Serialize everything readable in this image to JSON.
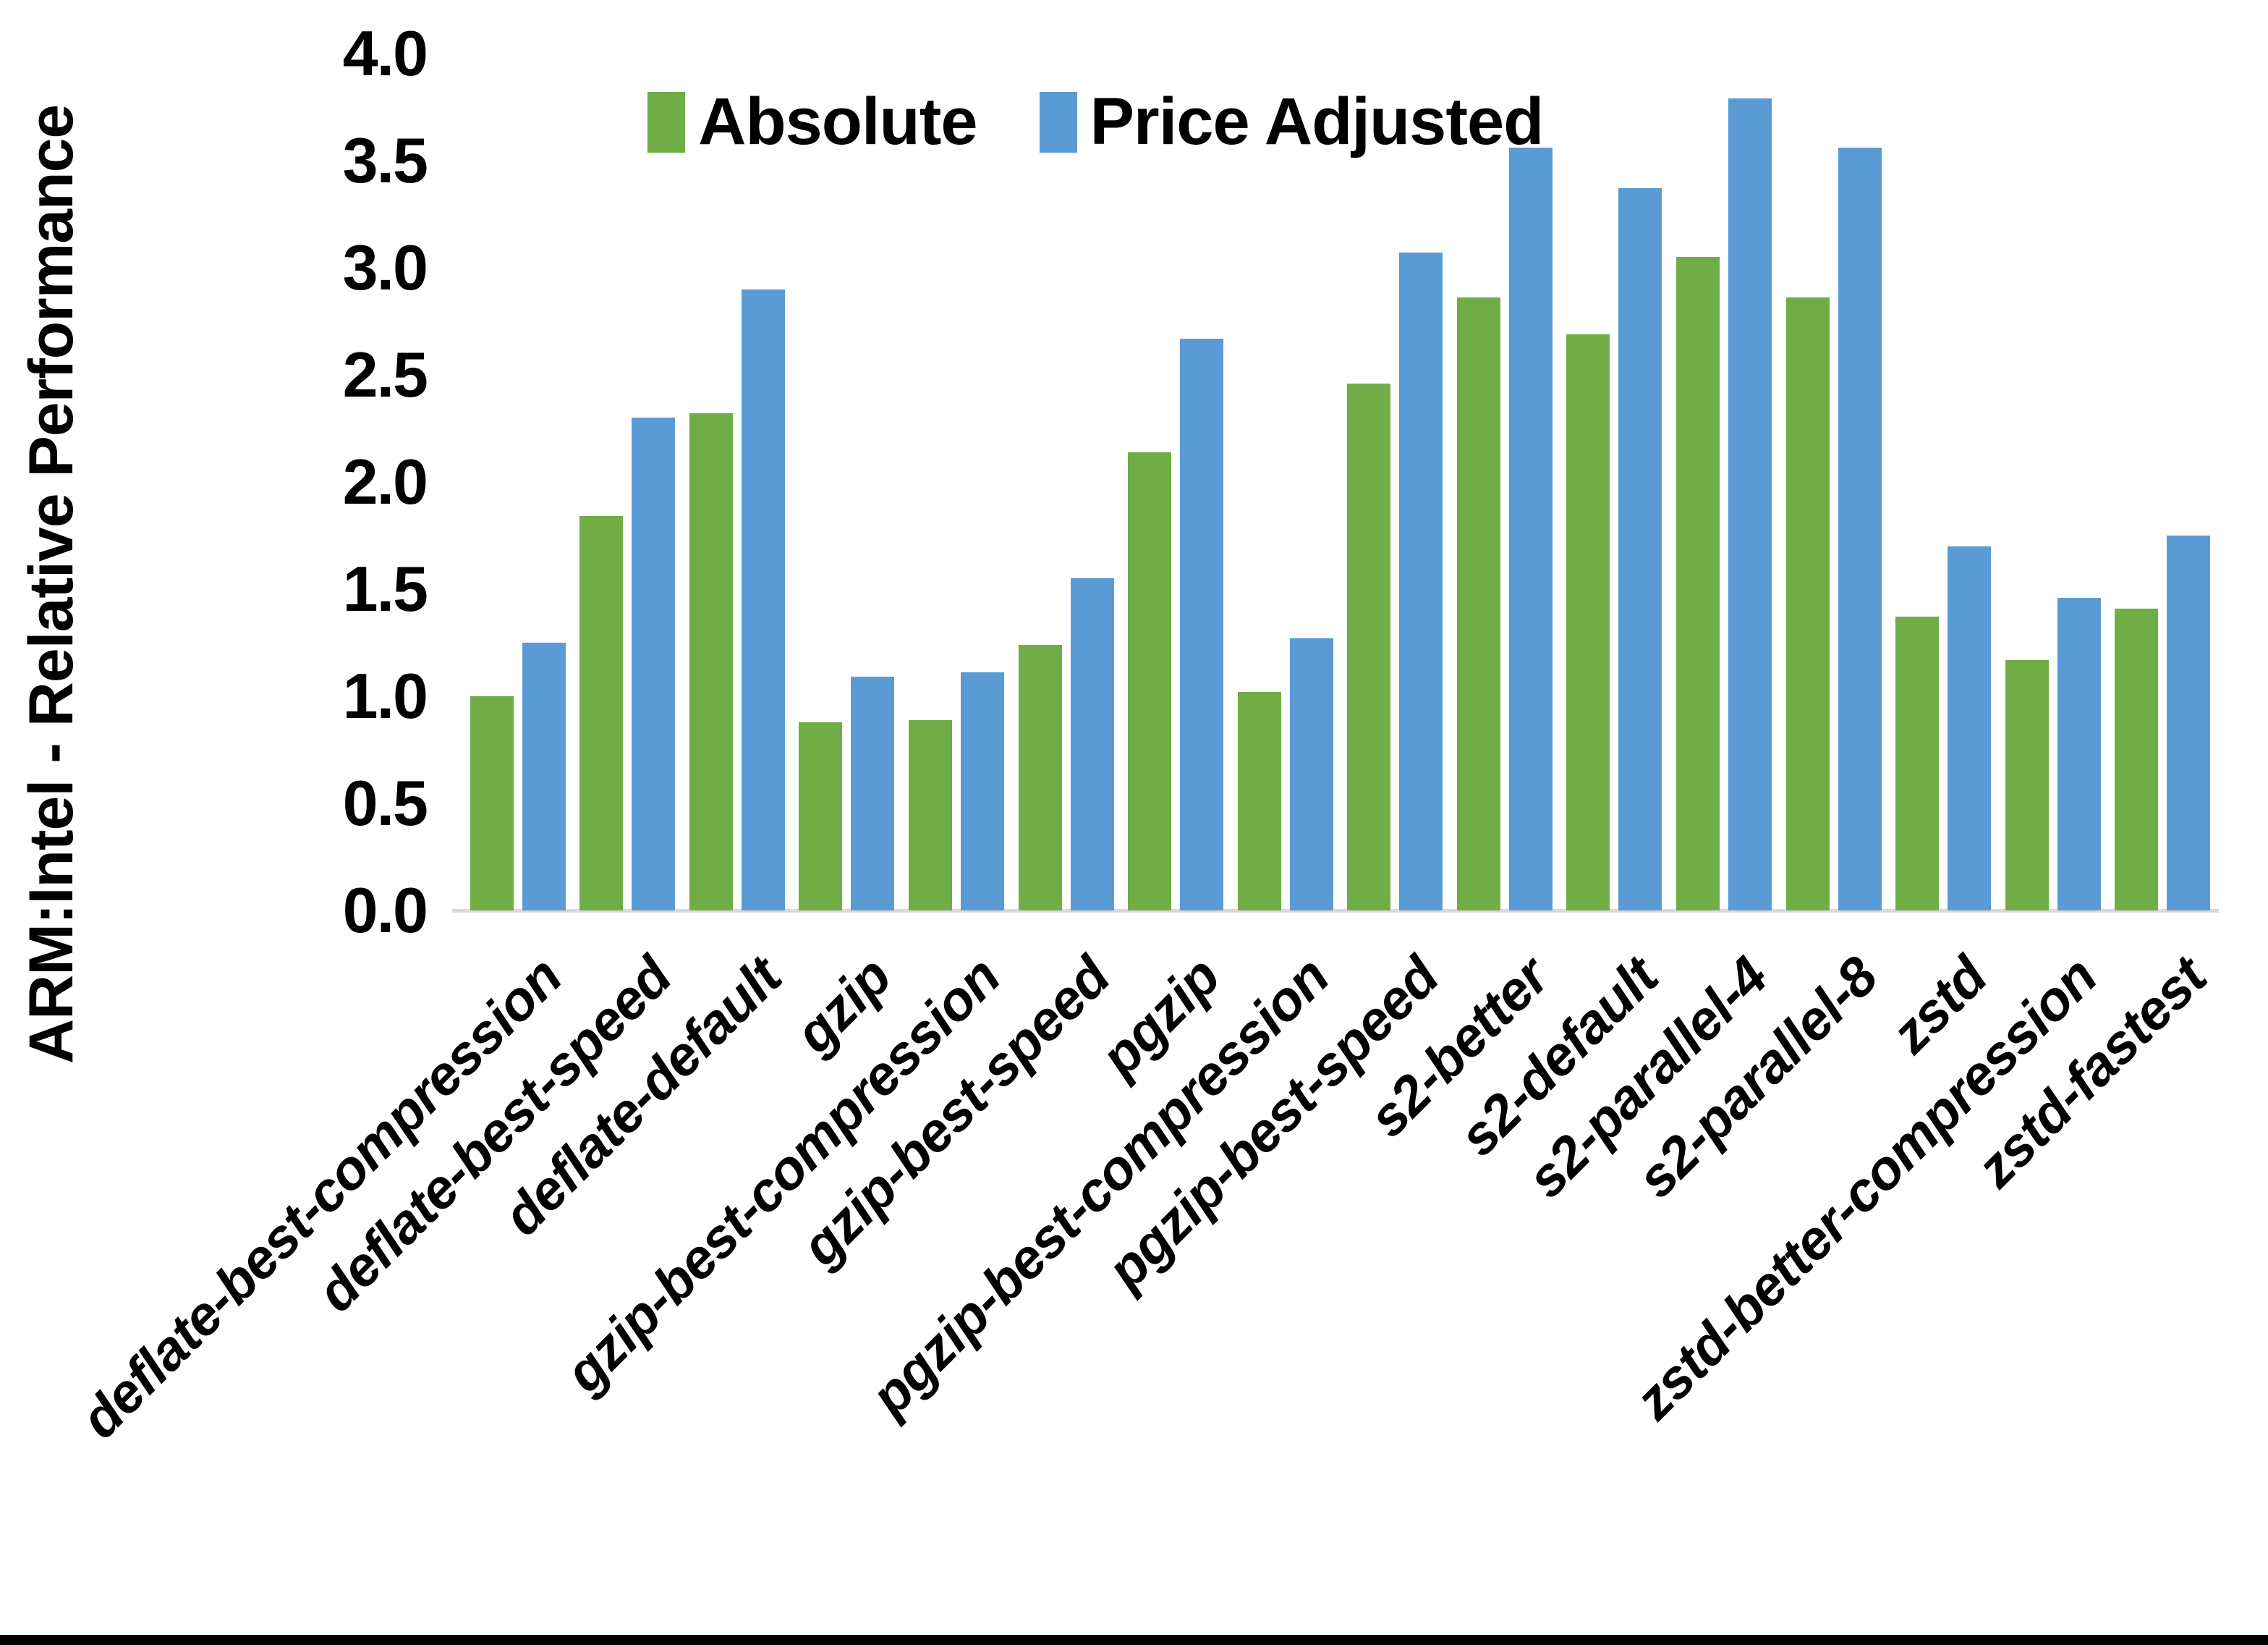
{
  "chart_data": {
    "type": "bar",
    "title": "",
    "ylabel": "ARM:Intel - Relative Performance",
    "xlabel": "",
    "ylim": [
      0.0,
      4.0
    ],
    "grid": false,
    "legend_position": "top-center",
    "yticks": [
      {
        "value": 0.0,
        "label": "0.0"
      },
      {
        "value": 0.5,
        "label": "0.5"
      },
      {
        "value": 1.0,
        "label": "1.0"
      },
      {
        "value": 1.5,
        "label": "1.5"
      },
      {
        "value": 2.0,
        "label": "2.0"
      },
      {
        "value": 2.5,
        "label": "2.5"
      },
      {
        "value": 3.0,
        "label": "3.0"
      },
      {
        "value": 3.5,
        "label": "3.5"
      },
      {
        "value": 4.0,
        "label": "4.0"
      }
    ],
    "categories": [
      "deflate-best-compression",
      "deflate-best-speed",
      "deflate-default",
      "gzip",
      "gzip-best-compression",
      "gzip-best-speed",
      "pgzip",
      "pgzip-best-compression",
      "pgzip-best-speed",
      "s2-better",
      "s2-default",
      "s2-parallel-4",
      "s2-parallel-8",
      "zstd",
      "zstd-better-compression",
      "zstd-fastest"
    ],
    "series": [
      {
        "name": "Absolute",
        "color": "#70AD47",
        "values": [
          1.0,
          1.84,
          2.32,
          0.88,
          0.89,
          1.24,
          2.14,
          1.02,
          2.46,
          2.86,
          2.69,
          3.05,
          2.86,
          1.37,
          1.17,
          1.41
        ]
      },
      {
        "name": "Price Adjusted",
        "color": "#5B9BD5",
        "values": [
          1.25,
          2.3,
          2.9,
          1.09,
          1.11,
          1.55,
          2.67,
          1.27,
          3.07,
          3.56,
          3.37,
          3.79,
          3.56,
          1.7,
          1.46,
          1.75
        ]
      }
    ]
  },
  "colors": {
    "background": "#FFFFFF",
    "axis_line": "#D9D9D9",
    "text": "#000000",
    "bottom_bar": "#000000"
  }
}
